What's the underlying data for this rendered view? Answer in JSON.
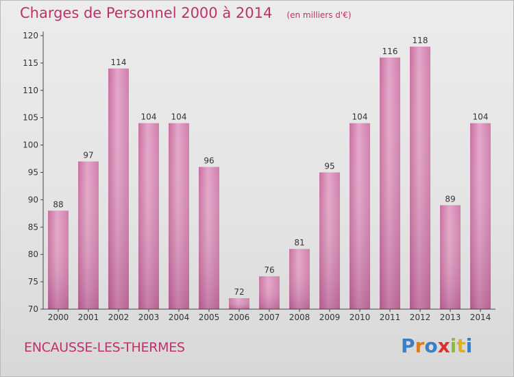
{
  "header": {
    "title": "Charges de Personnel 2000 à 2014",
    "subtitle": "(en milliers d'€)"
  },
  "footer": {
    "commune": "ENCAUSSE-LES-THERMES",
    "brand": "Proxiti",
    "brand_colors": [
      "#3a7fc4",
      "#e07a1f",
      "#3a7fc4",
      "#d93030",
      "#8bbf2f",
      "#e0b020",
      "#3a7fc4"
    ]
  },
  "chart_data": {
    "type": "bar",
    "categories": [
      "2000",
      "2001",
      "2002",
      "2003",
      "2004",
      "2005",
      "2006",
      "2007",
      "2008",
      "2009",
      "2010",
      "2011",
      "2012",
      "2013",
      "2014"
    ],
    "values": [
      88,
      97,
      114,
      104,
      104,
      96,
      72,
      76,
      81,
      95,
      104,
      116,
      118,
      89,
      104
    ],
    "ylim": [
      70,
      120
    ],
    "yticks": [
      70,
      75,
      80,
      85,
      90,
      95,
      100,
      105,
      110,
      115,
      120
    ],
    "grid": false,
    "bar_color": "#d98bb4",
    "axis_color": "#444444"
  }
}
